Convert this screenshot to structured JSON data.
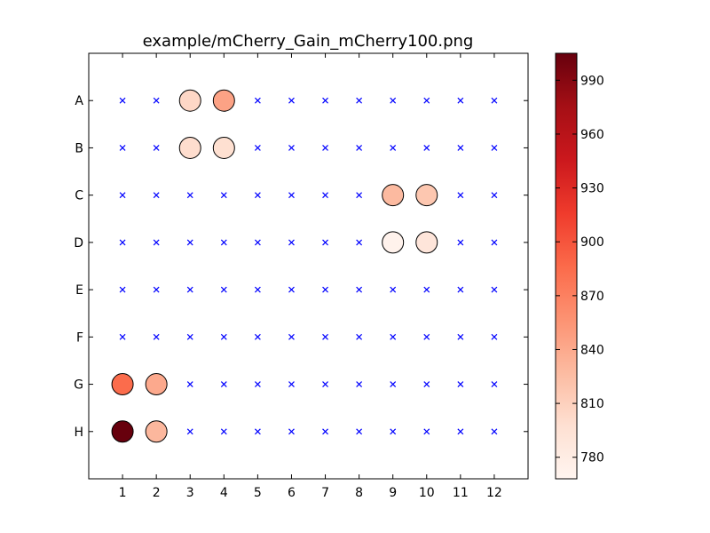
{
  "chart_data": {
    "type": "scatter",
    "title": "example/mCherry_Gain_mCherry100.png",
    "xlabel": "",
    "ylabel": "",
    "x_ticks": [
      "1",
      "2",
      "3",
      "4",
      "5",
      "6",
      "7",
      "8",
      "9",
      "10",
      "11",
      "12"
    ],
    "y_ticks": [
      "A",
      "B",
      "C",
      "D",
      "E",
      "F",
      "G",
      "H"
    ],
    "xlim": [
      0,
      13
    ],
    "ylim_rows": [
      "",
      "A",
      "B",
      "C",
      "D",
      "E",
      "F",
      "G",
      "H",
      ""
    ],
    "grid": false,
    "empty_marker": {
      "symbol": "x",
      "color": "#0000ff"
    },
    "colorbar": {
      "cmap": "Reds",
      "range": [
        768,
        1005
      ],
      "ticks": [
        780,
        810,
        840,
        870,
        900,
        930,
        960,
        990
      ]
    },
    "points": [
      {
        "row": "A",
        "col": 3,
        "value": 805
      },
      {
        "row": "A",
        "col": 4,
        "value": 845
      },
      {
        "row": "B",
        "col": 3,
        "value": 800
      },
      {
        "row": "B",
        "col": 4,
        "value": 798
      },
      {
        "row": "C",
        "col": 9,
        "value": 828
      },
      {
        "row": "C",
        "col": 10,
        "value": 818
      },
      {
        "row": "D",
        "col": 9,
        "value": 772
      },
      {
        "row": "D",
        "col": 10,
        "value": 790
      },
      {
        "row": "G",
        "col": 1,
        "value": 885
      },
      {
        "row": "G",
        "col": 2,
        "value": 840
      },
      {
        "row": "H",
        "col": 1,
        "value": 1005
      },
      {
        "row": "H",
        "col": 2,
        "value": 830
      }
    ]
  }
}
